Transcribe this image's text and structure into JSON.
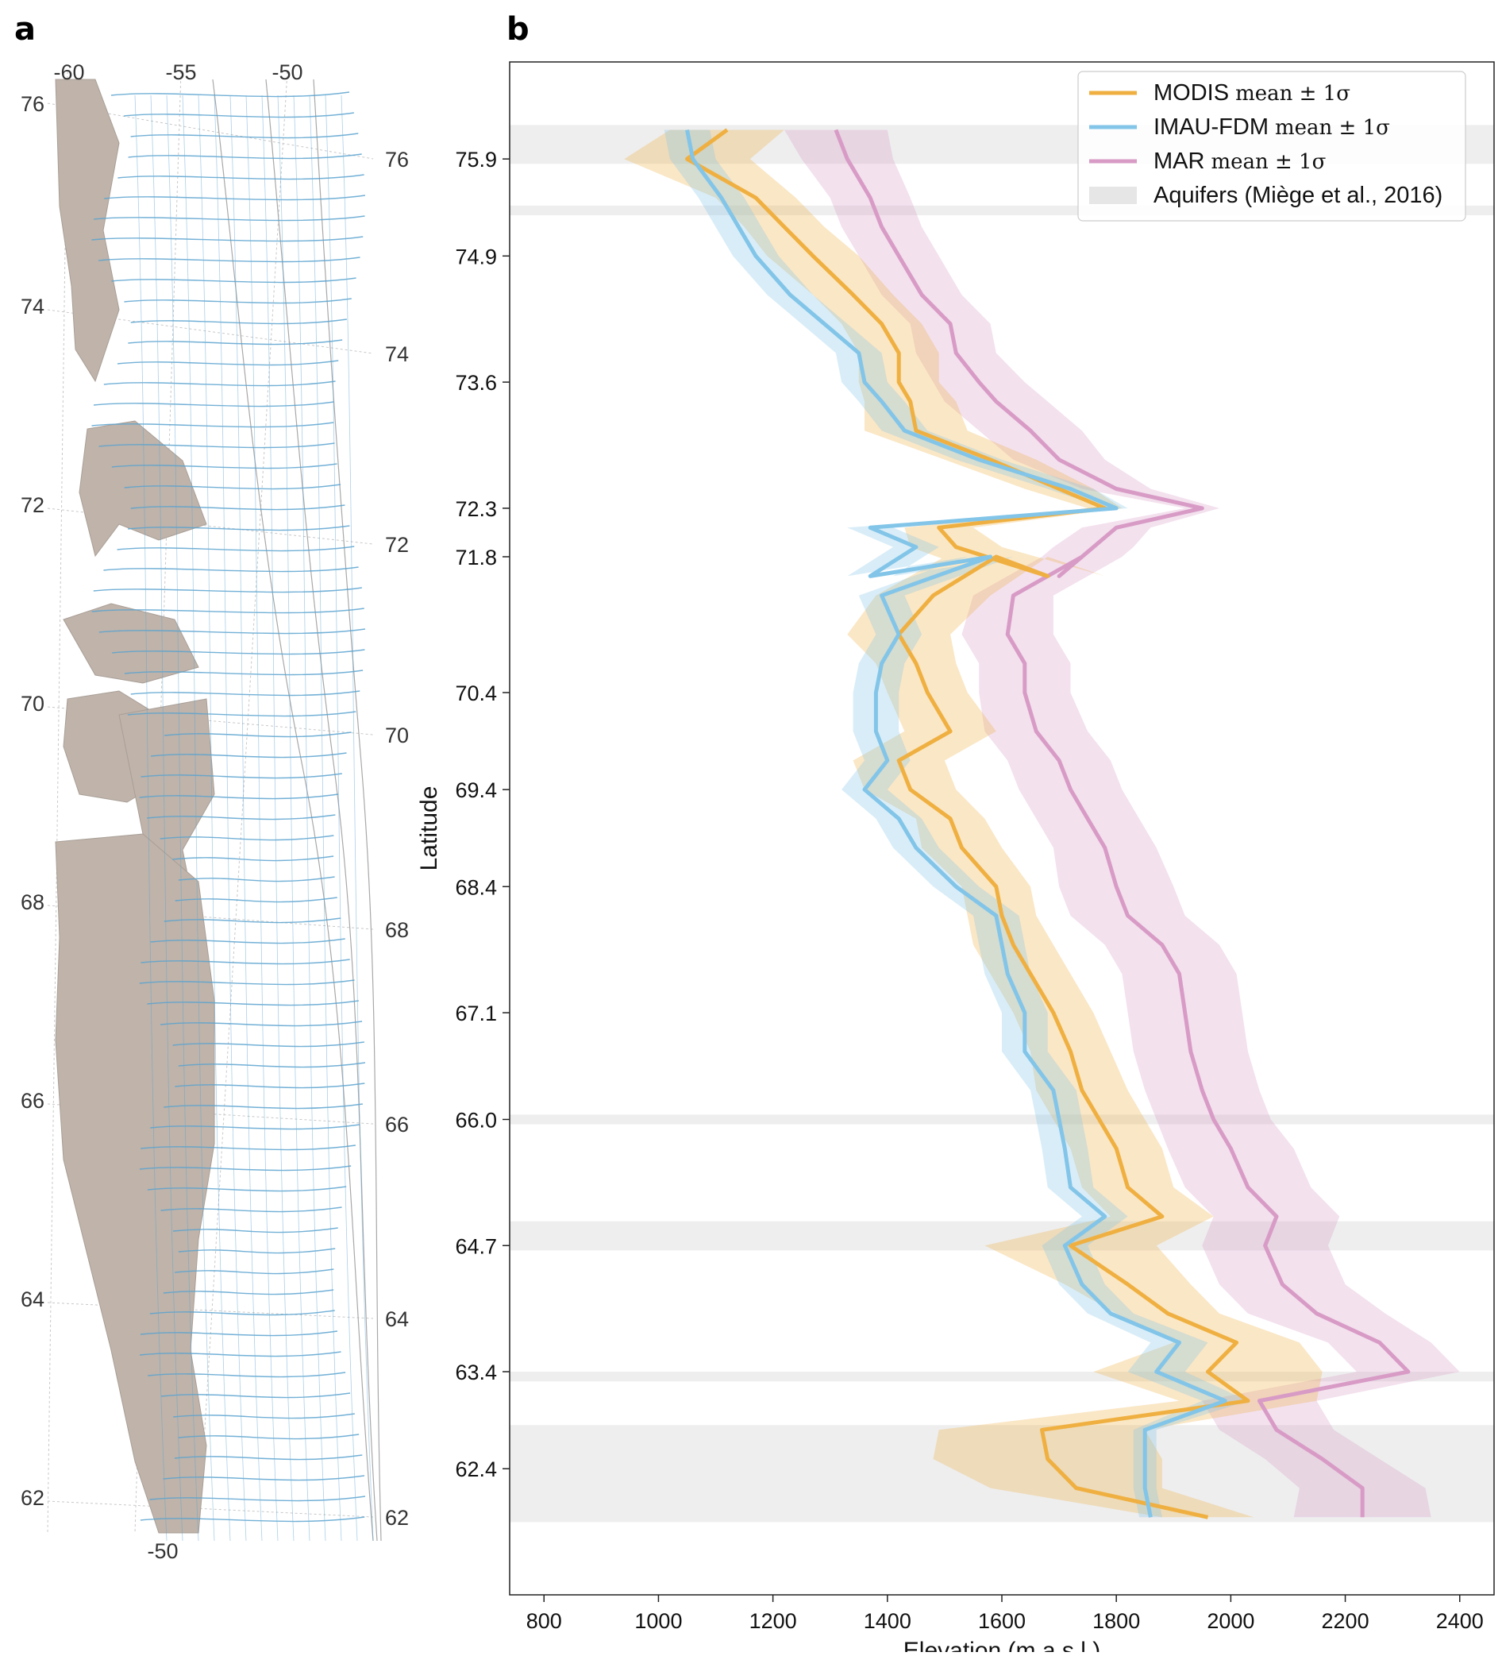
{
  "panels": {
    "a": "a",
    "b": "b"
  },
  "map": {
    "lon_labels_top": [
      "-60",
      "-55",
      "-50"
    ],
    "lon_label_bottom": "-50",
    "lat_labels_left": [
      "76",
      "74",
      "72",
      "70",
      "68",
      "66",
      "64",
      "62"
    ],
    "lat_labels_right": [
      "76",
      "74",
      "72",
      "70",
      "68",
      "66",
      "64",
      "62"
    ],
    "colors": {
      "land": "#bfb3aa",
      "flowline": "#5aa3cf",
      "contour": "#9a9a9a"
    }
  },
  "chart_data": {
    "type": "line",
    "xlabel": "Elevation (m a.s.l.)",
    "ylabel": "Latitude",
    "xlim": [
      740,
      2460
    ],
    "xticks": [
      800,
      1000,
      1200,
      1400,
      1600,
      1800,
      2000,
      2200,
      2400
    ],
    "ylim": [
      61.1,
      76.9
    ],
    "yticks": [
      62.4,
      63.4,
      64.7,
      66.0,
      67.1,
      68.4,
      69.4,
      70.4,
      71.8,
      72.3,
      73.6,
      74.9,
      75.9
    ],
    "ytick_labels": [
      "62.4",
      "63.4",
      "64.7",
      "66.0",
      "67.1",
      "68.4",
      "69.4",
      "70.4",
      "71.8",
      "72.3",
      "73.6",
      "74.9",
      "75.9"
    ],
    "grid": false,
    "legend_position": "top-right",
    "legend_suffix": "mean ± 1σ",
    "aquifer_bands": [
      [
        61.85,
        62.85
      ],
      [
        63.3,
        63.4
      ],
      [
        64.65,
        64.95
      ],
      [
        65.95,
        66.05
      ],
      [
        75.32,
        75.42
      ],
      [
        75.85,
        76.25
      ]
    ],
    "aquifer_label": "Aquifers (Miège et al., 2016)",
    "aquifer_color": "#d9d9d9",
    "lat": [
      61.9,
      62.2,
      62.5,
      62.8,
      63.1,
      63.4,
      63.7,
      64.0,
      64.3,
      64.7,
      65.0,
      65.3,
      65.7,
      66.0,
      66.3,
      66.7,
      67.1,
      67.5,
      67.8,
      68.1,
      68.4,
      68.8,
      69.1,
      69.4,
      69.7,
      70.0,
      70.4,
      70.7,
      71.0,
      71.4,
      71.8,
      71.6,
      71.9,
      72.1,
      72.3,
      72.5,
      72.8,
      73.1,
      73.4,
      73.6,
      73.9,
      74.2,
      74.5,
      74.9,
      75.2,
      75.5,
      75.9,
      76.2
    ],
    "series": [
      {
        "name": "MODIS",
        "color": "#efb041",
        "mean": [
          1960,
          1730,
          1680,
          1670,
          2030,
          1960,
          2010,
          1890,
          1820,
          1720,
          1880,
          1820,
          1800,
          1770,
          1740,
          1720,
          1690,
          1650,
          1620,
          1600,
          1590,
          1530,
          1510,
          1440,
          1420,
          1510,
          1470,
          1450,
          1420,
          1480,
          1590,
          1680,
          1520,
          1490,
          1780,
          1700,
          1580,
          1450,
          1440,
          1420,
          1420,
          1390,
          1340,
          1270,
          1220,
          1170,
          1050,
          1120
        ],
        "sd": [
          80,
          150,
          200,
          180,
          120,
          200,
          110,
          90,
          110,
          150,
          90,
          80,
          80,
          80,
          80,
          70,
          70,
          70,
          70,
          60,
          60,
          70,
          60,
          80,
          80,
          80,
          70,
          70,
          90,
          100,
          90,
          100,
          80,
          60,
          30,
          60,
          80,
          90,
          80,
          70,
          70,
          70,
          70,
          80,
          70,
          70,
          110,
          100
        ]
      },
      {
        "name": "IMAU-FDM",
        "color": "#82c5e8",
        "mean": [
          1860,
          1850,
          1850,
          1850,
          1990,
          1870,
          1910,
          1790,
          1740,
          1710,
          1780,
          1720,
          1710,
          1700,
          1690,
          1640,
          1640,
          1610,
          1600,
          1590,
          1520,
          1450,
          1420,
          1360,
          1400,
          1380,
          1380,
          1390,
          1420,
          1390,
          1580,
          1370,
          1450,
          1370,
          1800,
          1720,
          1560,
          1430,
          1390,
          1360,
          1350,
          1290,
          1230,
          1170,
          1140,
          1110,
          1060,
          1050
        ],
        "sd": [
          20,
          20,
          20,
          20,
          40,
          50,
          50,
          40,
          40,
          40,
          40,
          40,
          40,
          40,
          40,
          40,
          40,
          40,
          40,
          40,
          40,
          40,
          40,
          40,
          40,
          40,
          40,
          40,
          40,
          40,
          40,
          40,
          40,
          40,
          20,
          40,
          40,
          40,
          40,
          40,
          40,
          40,
          40,
          40,
          40,
          40,
          40,
          40
        ]
      },
      {
        "name": "MAR",
        "color": "#d89bc6",
        "mean": [
          2230,
          2230,
          2160,
          2080,
          2050,
          2310,
          2260,
          2150,
          2090,
          2060,
          2080,
          2030,
          2000,
          1970,
          1950,
          1930,
          1920,
          1910,
          1880,
          1820,
          1800,
          1780,
          1750,
          1720,
          1700,
          1660,
          1640,
          1640,
          1610,
          1620,
          1740,
          1700,
          1760,
          1800,
          1950,
          1800,
          1700,
          1650,
          1590,
          1560,
          1520,
          1510,
          1460,
          1420,
          1390,
          1370,
          1330,
          1310
        ],
        "sd": [
          120,
          110,
          100,
          100,
          100,
          90,
          90,
          120,
          110,
          110,
          110,
          110,
          110,
          100,
          100,
          100,
          100,
          100,
          100,
          100,
          100,
          90,
          90,
          90,
          90,
          90,
          80,
          80,
          80,
          70,
          70,
          70,
          70,
          60,
          30,
          60,
          80,
          90,
          90,
          80,
          70,
          70,
          70,
          70,
          70,
          70,
          80,
          90
        ]
      }
    ]
  }
}
